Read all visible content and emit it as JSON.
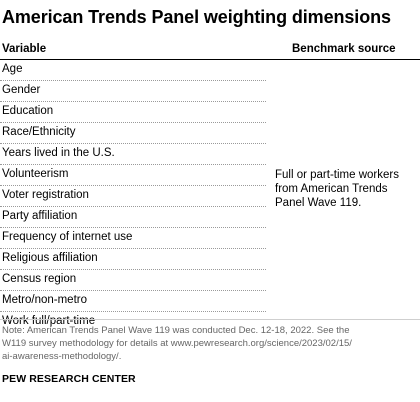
{
  "title": "American Trends Panel weighting dimensions",
  "columns": {
    "variable": "Variable",
    "benchmark": "Benchmark source"
  },
  "variables": [
    "Age",
    "Gender",
    "Education",
    "Race/Ethnicity",
    "Years lived in the U.S.",
    "Volunteerism",
    "Voter registration",
    "Party affiliation",
    "Frequency of internet use",
    "Religious affiliation",
    "Census region",
    "Metro/non-metro",
    "Work full/part-time"
  ],
  "benchmark_source": "Full or part-time workers from American Trends Panel Wave 119.",
  "note_lines": [
    "Note: American Trends Panel Wave 119 was conducted Dec. 12-18, 2022. See the",
    "W119 survey methodology for details at www.pewresearch.org/science/2023/02/15/",
    "ai-awareness-methodology/."
  ],
  "source": "PEW RESEARCH CENTER"
}
